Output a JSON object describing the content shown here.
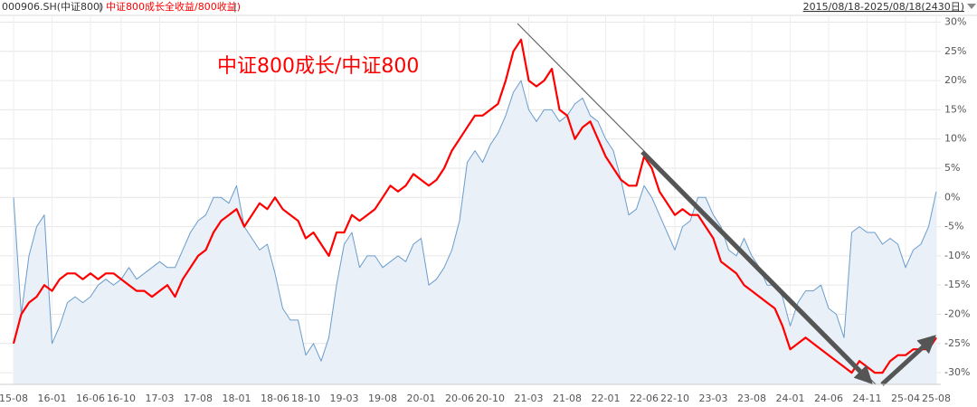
{
  "chart_data": {
    "type": "line",
    "separator": "|",
    "date_range": "2015/08/18-2025/08/18(2430日)",
    "annotation": "中证800成长/中证800",
    "categories": [
      "15-08",
      null,
      null,
      null,
      null,
      "16-01",
      null,
      null,
      null,
      null,
      "16-06",
      null,
      null,
      null,
      "16-10",
      null,
      null,
      null,
      null,
      "17-03",
      null,
      null,
      null,
      null,
      "17-08",
      null,
      null,
      null,
      null,
      "18-01",
      null,
      null,
      null,
      null,
      "18-06",
      null,
      null,
      null,
      "18-10",
      null,
      null,
      null,
      null,
      "19-03",
      null,
      null,
      null,
      null,
      "19-08",
      null,
      null,
      null,
      null,
      "20-01",
      null,
      null,
      null,
      null,
      "20-06",
      null,
      null,
      null,
      "20-10",
      null,
      null,
      null,
      null,
      "21-03",
      null,
      null,
      null,
      null,
      "21-08",
      null,
      null,
      null,
      null,
      "22-01",
      null,
      null,
      null,
      null,
      "22-06",
      null,
      null,
      null,
      "22-10",
      null,
      null,
      null,
      null,
      "23-03",
      null,
      null,
      null,
      null,
      "23-08",
      null,
      null,
      null,
      null,
      "24-01",
      null,
      null,
      null,
      null,
      "24-06",
      null,
      null,
      null,
      null,
      "24-11",
      null,
      null,
      null,
      null,
      "25-04",
      null,
      null,
      null,
      "25-08"
    ],
    "series": [
      {
        "name": "000906.SH(中证800)",
        "color": "#6a9ccc",
        "fill": "#e9f0f8",
        "values": [
          0,
          -20,
          -10,
          -5,
          -3,
          -25,
          -22,
          -18,
          -17,
          -18,
          -17,
          -15,
          -14,
          -15,
          -14,
          -12,
          -14,
          -13,
          -12,
          -11,
          -12,
          -12,
          -9,
          -6,
          -4,
          -3,
          0,
          0,
          -1,
          2,
          -5,
          -7,
          -9,
          -8,
          -13,
          -19,
          -21,
          -21,
          -27,
          -25,
          -28,
          -24,
          -15,
          -8,
          -6,
          -12,
          -10,
          -10,
          -12,
          -11,
          -10,
          -11,
          -8,
          -7,
          -15,
          -14,
          -12,
          -9,
          -4,
          6,
          8,
          6,
          9,
          11,
          14,
          18,
          20,
          15,
          13,
          15,
          15,
          13,
          14,
          16,
          17,
          14,
          13,
          10,
          8,
          3,
          -3,
          -2,
          2,
          0,
          -3,
          -6,
          -9,
          -5,
          -4,
          0,
          0,
          -3,
          -5,
          -9,
          -10,
          -7,
          -10,
          -12,
          -15,
          -15,
          -17,
          -22,
          -18,
          -16,
          -16,
          -15,
          -19,
          -20,
          -24,
          -6,
          -5,
          -6,
          -6,
          -8,
          -7,
          -8,
          -12,
          -9,
          -8,
          -5,
          1
        ]
      },
      {
        "name": "中证800成长全收益/800收益)",
        "color": "#ff0000",
        "values": [
          -25,
          -20,
          -18,
          -17,
          -15,
          -16,
          -14,
          -13,
          -13,
          -14,
          -13,
          -14,
          -13,
          -13,
          -14,
          -15,
          -16,
          -16,
          -17,
          -16,
          -15,
          -17,
          -14,
          -12,
          -10,
          -9,
          -6,
          -4,
          -3,
          -2,
          -5,
          -3,
          -1,
          -2,
          0,
          -2,
          -3,
          -4,
          -7,
          -6,
          -8,
          -10,
          -6,
          -6,
          -3,
          -4,
          -3,
          -2,
          0,
          2,
          1,
          2,
          4,
          3,
          2,
          3,
          5,
          8,
          10,
          12,
          14,
          14,
          15,
          16,
          20,
          25,
          27,
          20,
          19,
          20,
          22,
          15,
          14,
          10,
          12,
          13,
          10,
          7,
          5,
          3,
          2,
          2,
          7,
          5,
          1,
          -1,
          -3,
          -2,
          -3,
          -3,
          -5,
          -7,
          -11,
          -12,
          -13,
          -15,
          -16,
          -17,
          -18,
          -19,
          -22,
          -26,
          -25,
          -24,
          -25,
          -26,
          -27,
          -28,
          -29,
          -30,
          -28,
          -29,
          -30,
          -30,
          -28,
          -27,
          -27,
          -26,
          -26,
          -26,
          -24
        ]
      }
    ],
    "ylim": [
      -32,
      31
    ],
    "yticks": [
      {
        "value": 30,
        "label": "30%"
      },
      {
        "value": 25,
        "label": "25%"
      },
      {
        "value": 20,
        "label": "20%"
      },
      {
        "value": 15,
        "label": "15%"
      },
      {
        "value": 10,
        "label": "10%"
      },
      {
        "value": 5,
        "label": "5%"
      },
      {
        "value": 0,
        "label": "0%"
      },
      {
        "value": -5,
        "label": "-5%"
      },
      {
        "value": -10,
        "label": "-10%"
      },
      {
        "value": -15,
        "label": "-15%"
      },
      {
        "value": -20,
        "label": "-20%"
      },
      {
        "value": -25,
        "label": "-25%"
      },
      {
        "value": -30,
        "label": "-30%"
      }
    ],
    "grid": true
  }
}
